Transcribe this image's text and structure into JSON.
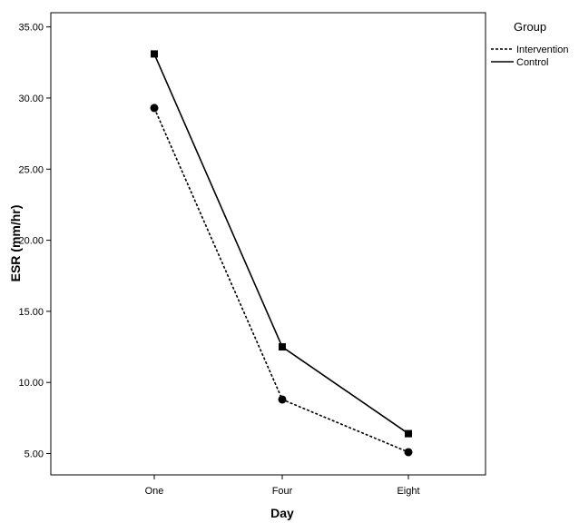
{
  "chart_data": {
    "type": "line",
    "xlabel": "Day",
    "ylabel": "ESR (mm/hr)",
    "categories": [
      "One",
      "Four",
      "Eight"
    ],
    "ylim": [
      3.5,
      36
    ],
    "yticks": [
      "5.00",
      "10.00",
      "15.00",
      "20.00",
      "25.00",
      "30.00",
      "35.00"
    ],
    "grid": false,
    "legend": {
      "title": "Group",
      "position": "top-right, outside plot"
    },
    "series": [
      {
        "name": "Intervention",
        "values": [
          29.3,
          8.8,
          5.1
        ],
        "line_style": "dashed",
        "marker": "circle",
        "color": "#000000"
      },
      {
        "name": "Control",
        "values": [
          33.1,
          12.5,
          6.4
        ],
        "line_style": "solid",
        "marker": "square",
        "color": "#000000"
      }
    ]
  }
}
